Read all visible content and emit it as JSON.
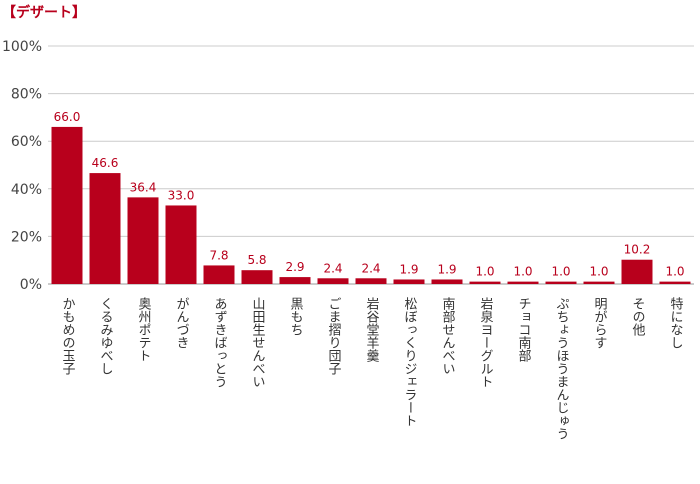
{
  "title": "【デザート】",
  "chart_data": {
    "type": "bar",
    "title": "【デザート】",
    "xlabel": "",
    "ylabel": "",
    "ylim": [
      0,
      100
    ],
    "yticks": [
      "0%",
      "20%",
      "40%",
      "60%",
      "80%",
      "100%"
    ],
    "grid": true,
    "bar_color": "#b8001c",
    "categories": [
      "かもめの玉子",
      "くるみゆべし",
      "奥州ポテト",
      "がんづき",
      "あずきばっとう",
      "山田生せんべい",
      "黒もち",
      "ごま摺り団子",
      "岩谷堂羊羹",
      "松ぼっくりジェラート",
      "南部せんべい",
      "岩泉ヨーグルト",
      "チョコ南部",
      "ぷちょうほうまんじゅう",
      "明がらす",
      "その他",
      "特になし"
    ],
    "values": [
      66.0,
      46.6,
      36.4,
      33.0,
      7.8,
      5.8,
      2.9,
      2.4,
      2.4,
      1.9,
      1.9,
      1.0,
      1.0,
      1.0,
      1.0,
      10.2,
      1.0
    ],
    "value_labels": [
      "66.0",
      "46.6",
      "36.4",
      "33.0",
      "7.8",
      "5.8",
      "2.9",
      "2.4",
      "2.4",
      "1.9",
      "1.9",
      "1.0",
      "1.0",
      "1.0",
      "1.0",
      "10.2",
      "1.0"
    ]
  }
}
